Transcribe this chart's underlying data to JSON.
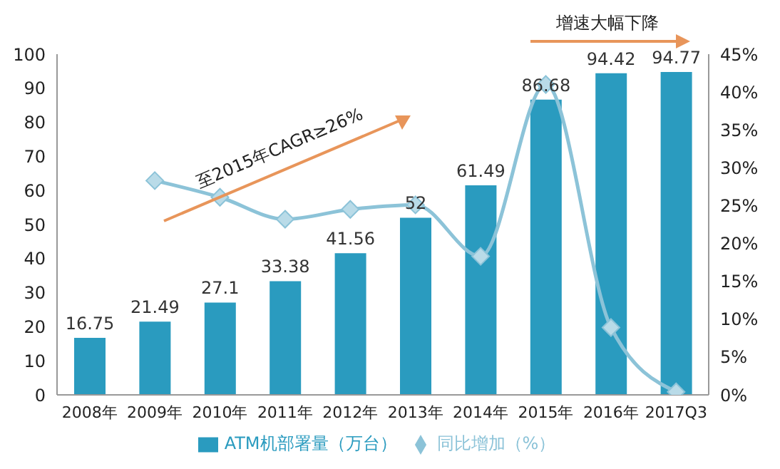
{
  "chart_data": {
    "type": "bar",
    "categories": [
      "2008年",
      "2009年",
      "2010年",
      "2011年",
      "2012年",
      "2013年",
      "2014年",
      "2015年",
      "2016年",
      "2017Q3"
    ],
    "series": [
      {
        "name": "ATM机部署量（万台）",
        "color": "#2a9bbf",
        "values": [
          16.75,
          21.49,
          27.1,
          33.38,
          41.56,
          52,
          61.49,
          86.68,
          94.42,
          94.77
        ],
        "value_labels": [
          "16.75",
          "21.49",
          "27.1",
          "33.38",
          "41.56",
          "52",
          "61.49",
          "86.68",
          "94.42",
          "94.77"
        ]
      },
      {
        "name": "同比增加（%）",
        "type": "line",
        "axis": "y2",
        "color": "#8cc3d8",
        "marker": "diamond",
        "values": [
          null,
          28.3,
          26.1,
          23.2,
          24.5,
          25.1,
          18.3,
          41.0,
          8.9,
          0.4
        ]
      }
    ],
    "ylim": [
      0,
      100
    ],
    "yticks": [
      0,
      10,
      20,
      30,
      40,
      50,
      60,
      70,
      80,
      90,
      100
    ],
    "y2lim": [
      0,
      45
    ],
    "y2ticks": [
      {
        "value": 0,
        "label": "0%"
      },
      {
        "value": 5,
        "label": "5%"
      },
      {
        "value": 10,
        "label": "10%"
      },
      {
        "value": 15,
        "label": "15%"
      },
      {
        "value": 20,
        "label": "20%"
      },
      {
        "value": 25,
        "label": "25%"
      },
      {
        "value": 30,
        "label": "30%"
      },
      {
        "value": 35,
        "label": "35%"
      },
      {
        "value": 40,
        "label": "40%"
      },
      {
        "value": 45,
        "label": "45%"
      }
    ],
    "annotations": [
      "至2015年CAGR≥26%",
      "增速大幅下降"
    ],
    "grid": false,
    "legend": "bottom"
  }
}
